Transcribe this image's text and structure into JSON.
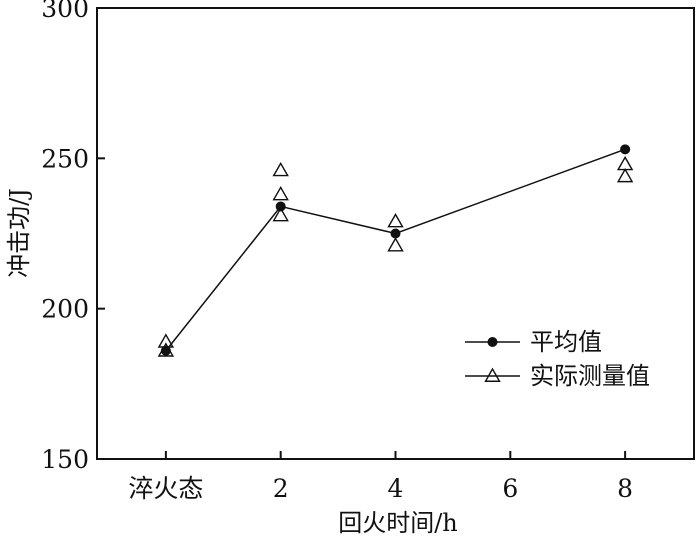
{
  "chart_data": {
    "type": "line",
    "x_tick_labels": [
      "淬火态",
      "2",
      "4",
      "6",
      "8"
    ],
    "x_tick_values": [
      0,
      2,
      4,
      6,
      8
    ],
    "xlim": [
      -1.2,
      9.2
    ],
    "ylim": [
      150,
      300
    ],
    "y_ticks": [
      150,
      200,
      250,
      300
    ],
    "xlabel": "回火时间/h",
    "ylabel": "冲击功/J",
    "grid": false,
    "legend_position": "center-right",
    "series": [
      {
        "name": "平均值",
        "style": "line-filled-circle",
        "color": "#111111",
        "points": [
          {
            "x": 0,
            "y": 186
          },
          {
            "x": 2,
            "y": 234
          },
          {
            "x": 4,
            "y": 225
          },
          {
            "x": 8,
            "y": 253
          }
        ]
      },
      {
        "name": "实际测量值",
        "style": "hollow-triangle",
        "color": "#111111",
        "points": [
          {
            "x": 0,
            "y": 189
          },
          {
            "x": 0,
            "y": 186
          },
          {
            "x": 2,
            "y": 246
          },
          {
            "x": 2,
            "y": 238
          },
          {
            "x": 2,
            "y": 231
          },
          {
            "x": 4,
            "y": 229
          },
          {
            "x": 4,
            "y": 221
          },
          {
            "x": 8,
            "y": 248
          },
          {
            "x": 8,
            "y": 244
          }
        ]
      }
    ]
  }
}
